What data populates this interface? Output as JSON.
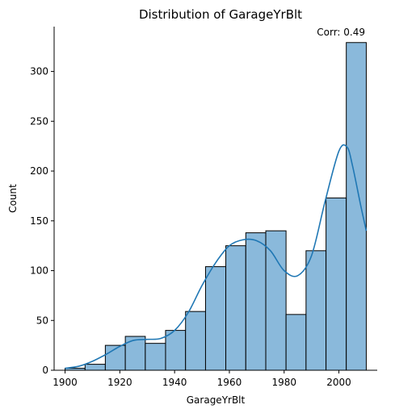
{
  "chart_data": {
    "type": "histogram",
    "title": "Distribution of GarageYrBlt",
    "xlabel": "GarageYrBlt",
    "ylabel": "Count",
    "annotation": "Corr: 0.49",
    "xlim": [
      1896,
      2014
    ],
    "ylim": [
      0,
      345
    ],
    "x_ticks": [
      1900,
      1920,
      1940,
      1960,
      1980,
      2000
    ],
    "y_ticks": [
      0,
      50,
      100,
      150,
      200,
      250,
      300
    ],
    "bins": [
      {
        "x0": 1900.0,
        "x1": 1907.3,
        "count": 2
      },
      {
        "x0": 1907.3,
        "x1": 1914.7,
        "count": 6
      },
      {
        "x0": 1914.7,
        "x1": 1922.0,
        "count": 25
      },
      {
        "x0": 1922.0,
        "x1": 1929.3,
        "count": 34
      },
      {
        "x0": 1929.3,
        "x1": 1936.7,
        "count": 27
      },
      {
        "x0": 1936.7,
        "x1": 1944.0,
        "count": 40
      },
      {
        "x0": 1944.0,
        "x1": 1951.3,
        "count": 59
      },
      {
        "x0": 1951.3,
        "x1": 1958.7,
        "count": 104
      },
      {
        "x0": 1958.7,
        "x1": 1966.0,
        "count": 125
      },
      {
        "x0": 1966.0,
        "x1": 1973.3,
        "count": 138
      },
      {
        "x0": 1973.3,
        "x1": 1980.7,
        "count": 140
      },
      {
        "x0": 1980.7,
        "x1": 1988.0,
        "count": 56
      },
      {
        "x0": 1988.0,
        "x1": 1995.3,
        "count": 120
      },
      {
        "x0": 1995.3,
        "x1": 2002.7,
        "count": 173
      },
      {
        "x0": 2002.7,
        "x1": 2010.0,
        "count": 329
      }
    ],
    "kde": {
      "x": [
        1900,
        1905,
        1910,
        1915,
        1920,
        1925,
        1930,
        1935,
        1940,
        1945,
        1950,
        1955,
        1960,
        1965,
        1970,
        1975,
        1980,
        1985,
        1990,
        1995,
        2000,
        2003,
        2005,
        2008,
        2010
      ],
      "y": [
        2,
        4,
        9,
        16,
        24,
        30,
        31,
        32,
        40,
        58,
        85,
        108,
        125,
        131,
        130,
        120,
        100,
        95,
        115,
        170,
        220,
        224,
        205,
        165,
        140
      ]
    },
    "colors": {
      "bar_fill": "#8ab9db",
      "bar_edge": "#000000",
      "kde_line": "#1f77b4"
    },
    "grid": false,
    "legend": "none"
  }
}
